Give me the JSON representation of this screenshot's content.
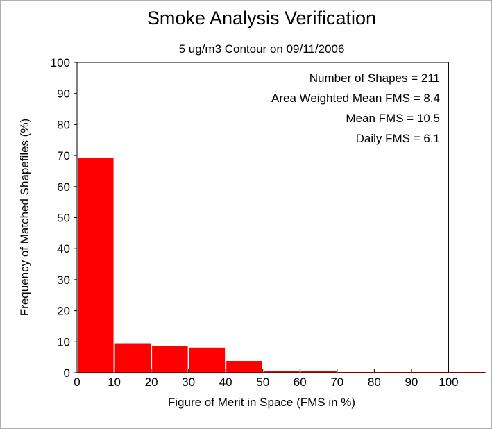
{
  "chart_data": {
    "type": "bar",
    "title": "Smoke Analysis Verification",
    "subtitle": "5 ug/m3 Contour on 09/11/2006",
    "xlabel": "Figure of Merit in Space (FMS in %)",
    "ylabel": "Frequency of Matched Shapefiles (%)",
    "xlim": [
      0,
      110
    ],
    "ylim": [
      0,
      100
    ],
    "x_ticks": [
      "0",
      "10",
      "20",
      "30",
      "40",
      "50",
      "60",
      "70",
      "80",
      "90",
      "100"
    ],
    "y_ticks": [
      "0",
      "10",
      "20",
      "30",
      "40",
      "50",
      "60",
      "70",
      "80",
      "90",
      "100"
    ],
    "bins": [
      {
        "start": 0,
        "end": 10,
        "value": 69.2
      },
      {
        "start": 10,
        "end": 20,
        "value": 9.5
      },
      {
        "start": 20,
        "end": 30,
        "value": 8.5
      },
      {
        "start": 30,
        "end": 40,
        "value": 8.1
      },
      {
        "start": 40,
        "end": 50,
        "value": 3.8
      },
      {
        "start": 50,
        "end": 60,
        "value": 0.5
      },
      {
        "start": 60,
        "end": 70,
        "value": 0.5
      },
      {
        "start": 70,
        "end": 80,
        "value": 0.0
      },
      {
        "start": 80,
        "end": 90,
        "value": 0.0
      },
      {
        "start": 90,
        "end": 100,
        "value": 0.0
      },
      {
        "start": 100,
        "end": 110,
        "value": 0.0
      }
    ],
    "bar_color": "#ff0000",
    "annotations": [
      "Number of Shapes = 211",
      "Area Weighted Mean FMS = 8.4",
      "Mean FMS = 10.5",
      "Daily FMS = 6.1"
    ],
    "grid": false
  }
}
